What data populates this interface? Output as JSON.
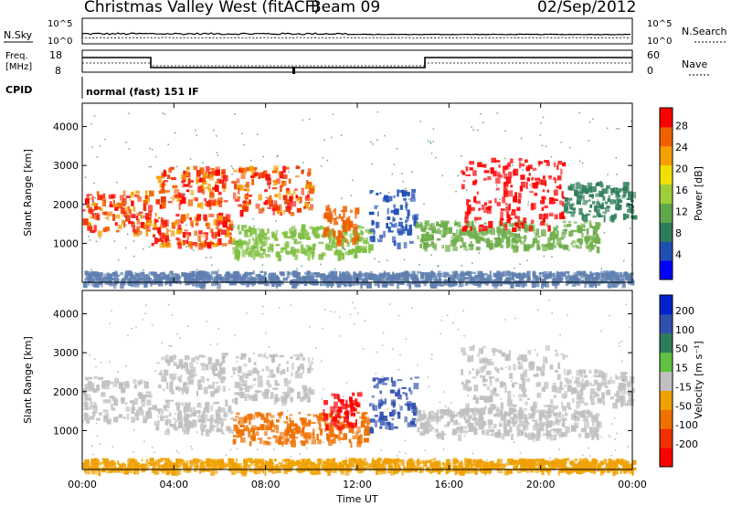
{
  "header": {
    "station": "Christmas Valley West (fitACF)",
    "beam": "Beam 09",
    "date": "02/Sep/2012"
  },
  "status_panel": {
    "nsky_label": "N.Sky",
    "nsearch_label": "N.Search",
    "count_ticks_left": [
      "10^5",
      "10^0"
    ],
    "count_ticks_right": [
      "10^5",
      "10^0"
    ],
    "freq_label_line1": "Freq.",
    "freq_label_line2": "[MHz]",
    "freq_ticks": [
      "18",
      "8"
    ],
    "nave_label": "Nave",
    "nave_ticks": [
      "60",
      "0"
    ],
    "cpid_label": "CPID",
    "cpid_value": "normal (fast) 151 IF"
  },
  "chart_data": [
    {
      "type": "heatmap",
      "name": "power",
      "xlabel": "",
      "ylabel": "Slant Range [km]",
      "xlim": [
        "00:00",
        "24:00"
      ],
      "ylim": [
        0,
        4600
      ],
      "yticks": [
        "1000",
        "2000",
        "3000",
        "4000"
      ],
      "colorbar": {
        "label": "Power [dB]",
        "ticks": [
          "4",
          "8",
          "12",
          "16",
          "20",
          "24",
          "28"
        ],
        "colors": [
          "#0000ff",
          "#1f4fb4",
          "#2e7d5a",
          "#5fa84a",
          "#9ecf3a",
          "#f0e000",
          "#f5a000",
          "#f06000",
          "#ff0000"
        ]
      }
    },
    {
      "type": "heatmap",
      "name": "velocity",
      "xlabel": "Time UT",
      "ylabel": "Slant Range [km]",
      "xlim": [
        "00:00",
        "24:00"
      ],
      "ylim": [
        0,
        4600
      ],
      "xticks": [
        "00:00",
        "04:00",
        "08:00",
        "12:00",
        "16:00",
        "20:00",
        "00:00"
      ],
      "yticks": [
        "1000",
        "2000",
        "3000",
        "4000"
      ],
      "colorbar": {
        "label": "Velocity [m s⁻¹]",
        "ticks": [
          "200",
          "100",
          "50",
          "15",
          "-15",
          "-50",
          "-100",
          "-200"
        ],
        "colors": [
          "#0022cc",
          "#3050b0",
          "#2e7d5a",
          "#60c040",
          "#c0c0c0",
          "#f0a000",
          "#f07000",
          "#f03000",
          "#ff0000"
        ]
      }
    }
  ]
}
